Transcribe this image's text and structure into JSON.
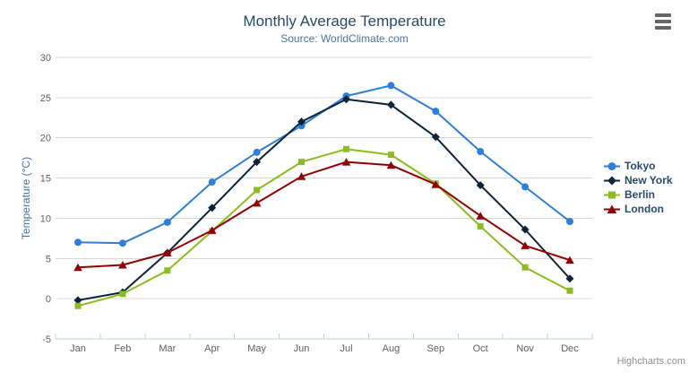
{
  "chart_data": {
    "type": "line",
    "title": "Monthly Average Temperature",
    "subtitle": "Source: WorldClimate.com",
    "xlabel": "",
    "ylabel": "Temperature (°C)",
    "categories": [
      "Jan",
      "Feb",
      "Mar",
      "Apr",
      "May",
      "Jun",
      "Jul",
      "Aug",
      "Sep",
      "Oct",
      "Nov",
      "Dec"
    ],
    "yticks": [
      -5,
      0,
      5,
      10,
      15,
      20,
      25,
      30
    ],
    "ylim": [
      -5,
      30
    ],
    "grid": true,
    "legend_position": "right",
    "series": [
      {
        "name": "Tokyo",
        "color": "#2f7ed8",
        "marker": "circle",
        "values": [
          7.0,
          6.9,
          9.5,
          14.5,
          18.2,
          21.5,
          25.2,
          26.5,
          23.3,
          18.3,
          13.9,
          9.6
        ]
      },
      {
        "name": "New York",
        "color": "#0d233a",
        "marker": "diamond",
        "values": [
          -0.2,
          0.8,
          5.7,
          11.3,
          17.0,
          22.0,
          24.8,
          24.1,
          20.1,
          14.1,
          8.6,
          2.5
        ]
      },
      {
        "name": "Berlin",
        "color": "#8bbc21",
        "marker": "square",
        "values": [
          -0.9,
          0.6,
          3.5,
          8.4,
          13.5,
          17.0,
          18.6,
          17.9,
          14.3,
          9.0,
          3.9,
          1.0
        ]
      },
      {
        "name": "London",
        "color": "#910000",
        "marker": "triangle",
        "values": [
          3.9,
          4.2,
          5.7,
          8.5,
          11.9,
          15.2,
          17.0,
          16.6,
          14.2,
          10.3,
          6.6,
          4.8
        ]
      }
    ]
  },
  "colors": {
    "title": "#274b6d",
    "subtitle": "#4d759e",
    "axis_title": "#4572a7",
    "axis_labels": "#606060",
    "grid_line": "#d8d8d8",
    "axis_line": "#c0d0e0",
    "burger_icon": "#666666"
  },
  "toolbar": {
    "context_menu_icon": "hamburger-icon"
  },
  "credits": {
    "label": "Highcharts.com"
  }
}
